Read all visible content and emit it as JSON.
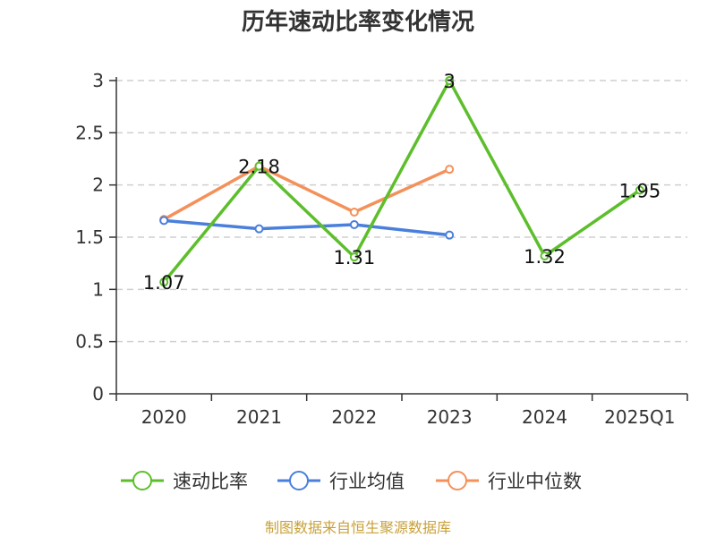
{
  "chart_data": {
    "type": "line",
    "title": "历年速动比率变化情况",
    "categories": [
      "2020",
      "2021",
      "2022",
      "2023",
      "2024",
      "2025Q1"
    ],
    "ylim": [
      0,
      3
    ],
    "yticks": [
      "0",
      "0.5",
      "1",
      "1.5",
      "2",
      "2.5",
      "3"
    ],
    "grid": true,
    "legend_position": "bottom",
    "series": [
      {
        "name": "速动比率",
        "color": "#5dbe2c",
        "values": [
          1.07,
          2.18,
          1.31,
          3,
          1.32,
          1.95
        ],
        "labels": [
          "1.07",
          "2.18",
          "1.31",
          "3",
          "1.32",
          "1.95"
        ]
      },
      {
        "name": "行业均值",
        "color": "#4a7fdb",
        "values": [
          1.66,
          1.58,
          1.62,
          1.52,
          null,
          null
        ]
      },
      {
        "name": "行业中位数",
        "color": "#f4915a",
        "values": [
          1.67,
          2.18,
          1.74,
          2.15,
          null,
          null
        ]
      }
    ]
  },
  "source_text": "制图数据来自恒生聚源数据库",
  "source_color": "#c8a13a"
}
